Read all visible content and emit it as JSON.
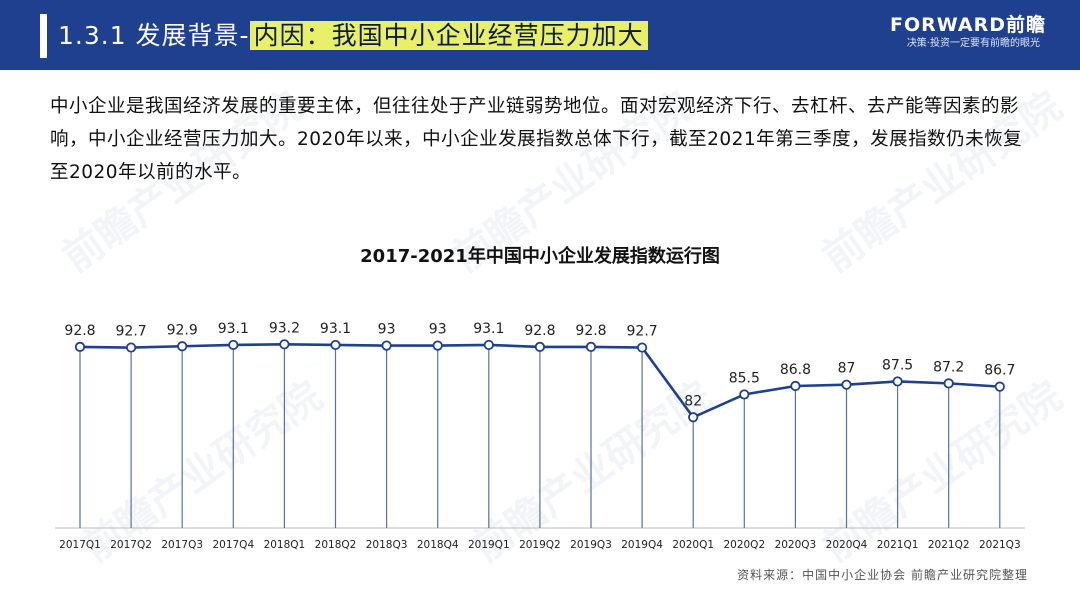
{
  "header": {
    "prefix": "1.3.1 发展背景-",
    "highlight": "内因：我国中小企业经营压力加大",
    "brand_logo": "FORWARD前瞻",
    "brand_slogan": "决策·投资一定要有前瞻的眼光"
  },
  "intro": "中小企业是我国经济发展的重要主体，但往往处于产业链弱势地位。面对宏观经济下行、去杠杆、去产能等因素的影响，中小企业经营压力加大。2020年以来，中小企业发展指数总体下行，截至2021年第三季度，发展指数仍未恢复至2020年以前的水平。",
  "source": "资料来源：中国中小企业协会  前瞻产业研究院整理",
  "watermark": "前瞻产业研究院",
  "colors": {
    "header_bg": "#1f3f8f",
    "highlight_bg": "#e8f06a",
    "line": "#1f3f8f"
  },
  "chart_data": {
    "type": "line",
    "title": "2017-2021年中国中小企业发展指数运行图",
    "categories": [
      "2017Q1",
      "2017Q2",
      "2017Q3",
      "2017Q4",
      "2018Q1",
      "2018Q2",
      "2018Q3",
      "2018Q4",
      "2019Q1",
      "2019Q2",
      "2019Q3",
      "2019Q4",
      "2020Q1",
      "2020Q2",
      "2020Q3",
      "2020Q4",
      "2021Q1",
      "2021Q2",
      "2021Q3"
    ],
    "values": [
      92.8,
      92.7,
      92.9,
      93.1,
      93.2,
      93.1,
      93,
      93,
      93.1,
      92.8,
      92.8,
      92.7,
      82,
      85.5,
      86.8,
      87,
      87.5,
      87.2,
      86.7
    ],
    "value_labels": [
      "92.8",
      "92.7",
      "92.9",
      "93.1",
      "93.2",
      "93.1",
      "93",
      "93",
      "93.1",
      "92.8",
      "92.8",
      "92.7",
      "82",
      "85.5",
      "86.8",
      "87",
      "87.5",
      "87.2",
      "86.7"
    ],
    "ylim": [
      65,
      100
    ],
    "grid": false,
    "drop_lines": true,
    "xlabel": "",
    "ylabel": ""
  }
}
